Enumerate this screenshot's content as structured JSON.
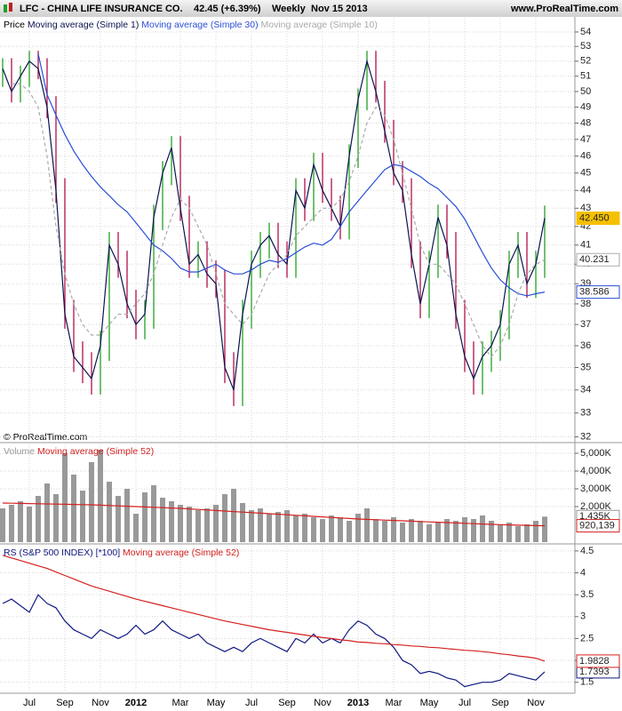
{
  "header": {
    "symbol": "LFC - CHINA LIFE INSURANCE CO.",
    "quote": "42.45 (+6.39%)",
    "period": "Weekly",
    "date": "Nov 15 2013",
    "site": "www.ProRealTime.com"
  },
  "copyright": "© ProRealTime.com",
  "chart_data": [
    {
      "type": "ohlc",
      "log": true,
      "ylim": [
        31.8,
        55
      ],
      "yticks": [
        32,
        33,
        34,
        35,
        36,
        37,
        38,
        39,
        40,
        41,
        42,
        43,
        44,
        45,
        46,
        47,
        48,
        49,
        50,
        51,
        52,
        53,
        54
      ],
      "grid": true,
      "series": [
        {
          "name": "Price",
          "up_color": "#22a022",
          "down_color": "#b0104a",
          "last_label": "42.450",
          "label_bg": "#f5c000",
          "close": [
            51.5,
            50,
            51,
            52,
            51.5,
            49,
            44,
            37.5,
            35.5,
            35,
            34.5,
            36,
            41,
            40,
            38,
            37,
            37.5,
            42.5,
            45,
            46.5,
            43,
            40,
            40.5,
            39.5,
            39,
            35,
            34,
            37.5,
            40,
            41,
            41.5,
            40.5,
            40,
            44,
            43,
            45.5,
            44,
            43,
            42,
            46,
            49.5,
            52,
            50,
            47.5,
            45,
            44,
            40.5,
            38,
            40,
            42.5,
            41,
            37.5,
            35.5,
            34.5,
            35.5,
            36,
            37,
            40,
            41,
            39,
            40,
            42.45
          ],
          "high": [
            52.2,
            52.2,
            51.7,
            52.7,
            52.7,
            52.2,
            49.7,
            44.7,
            38.2,
            36.2,
            35.7,
            36.7,
            41.7,
            41.7,
            40.7,
            38.7,
            38.2,
            43.2,
            45.7,
            47.2,
            47.2,
            43.7,
            41.2,
            41.2,
            40.2,
            39.7,
            35.7,
            38.2,
            40.7,
            41.7,
            42.2,
            42.2,
            41.2,
            44.7,
            44.7,
            46.2,
            46.2,
            44.7,
            43.7,
            46.7,
            50.2,
            52.7,
            52.7,
            50.7,
            48.2,
            45.7,
            44.7,
            41.2,
            40.7,
            43.2,
            43.2,
            41.7,
            38.2,
            36.2,
            36.2,
            36.7,
            37.7,
            40.7,
            41.7,
            41.7,
            40.7,
            43.15
          ],
          "low": [
            50.3,
            49.3,
            49.3,
            50.3,
            50.8,
            48.3,
            43.3,
            36.8,
            34.8,
            34.3,
            33.8,
            33.8,
            35.3,
            39.3,
            37.3,
            36.3,
            36.3,
            36.8,
            41.8,
            44.3,
            42.3,
            39.3,
            39.3,
            38.8,
            38.3,
            34.3,
            33.3,
            33.3,
            36.8,
            39.3,
            40.3,
            39.8,
            39.3,
            39.3,
            42.3,
            42.3,
            43.3,
            42.3,
            41.3,
            41.3,
            45.3,
            48.8,
            49.3,
            46.8,
            44.3,
            43.3,
            39.8,
            37.3,
            37.3,
            39.3,
            40.3,
            36.8,
            34.8,
            33.8,
            33.8,
            34.8,
            35.3,
            36.3,
            39.3,
            38.3,
            38.3,
            39.3
          ]
        },
        {
          "name": "Moving average (Simple 1)",
          "color": "#0a1450"
        },
        {
          "name": "Moving average (Simple 30)",
          "color": "#2a4fd6",
          "last_label": "38.586",
          "values": [
            null,
            null,
            null,
            null,
            52.5,
            49.8,
            48.5,
            47.3,
            46.3,
            45.5,
            44.8,
            44.2,
            43.7,
            43.2,
            42.8,
            42.2,
            41.6,
            41,
            40.7,
            40.3,
            39.8,
            39.6,
            39.6,
            39.8,
            40,
            39.7,
            39.5,
            39.5,
            39.7,
            40,
            40.2,
            40.1,
            40.3,
            40.6,
            40.9,
            41.1,
            41,
            41.3,
            42,
            42.8,
            43.4,
            44,
            44.6,
            45.2,
            45.5,
            45.4,
            45.1,
            44.8,
            44.4,
            44.1,
            43.6,
            43.1,
            42.4,
            41.5,
            40.6,
            39.8,
            39.2,
            38.8,
            38.5,
            38.4,
            38.5,
            38.586
          ]
        },
        {
          "name": "Moving average (Simple 10)",
          "color": "#aaaaaa",
          "dash": true,
          "last_label": "40.231",
          "values": [
            null,
            50.5,
            50.5,
            50,
            49,
            46,
            42,
            39.5,
            38,
            37,
            36.5,
            36.5,
            37,
            37.5,
            37.5,
            38,
            38.5,
            39.5,
            41,
            42.5,
            43.5,
            43,
            42,
            41,
            39.5,
            38,
            37.5,
            37,
            37.5,
            38.5,
            39.5,
            40,
            40.5,
            41.5,
            42,
            42.5,
            43,
            43,
            43.5,
            44.5,
            46,
            48,
            49,
            48.5,
            47,
            45,
            43,
            41,
            40,
            40,
            39.5,
            39,
            38,
            37,
            36,
            35.5,
            36,
            37,
            38.5,
            39.5,
            40,
            40.231
          ]
        }
      ]
    },
    {
      "type": "bar",
      "ylim": [
        0,
        5500000
      ],
      "grid": true,
      "yticks": [
        {
          "value": 2000000,
          "label": "2,000K"
        },
        {
          "value": 3000000,
          "label": "3,000K"
        },
        {
          "value": 4000000,
          "label": "4,000K"
        },
        {
          "value": 5000000,
          "label": "5,000K"
        }
      ],
      "series": [
        {
          "name": "Volume",
          "color": "#999999",
          "last_label": "1,435K",
          "values": [
            1900000,
            2100000,
            2300000,
            2000000,
            2600000,
            3300000,
            2700000,
            5000000,
            3800000,
            2900000,
            4500000,
            5200000,
            3400000,
            2600000,
            3000000,
            1600000,
            2800000,
            3200000,
            2500000,
            2300000,
            2100000,
            2000000,
            1800000,
            1900000,
            2100000,
            2700000,
            3000000,
            2200000,
            1800000,
            1900000,
            1600000,
            1700000,
            1800000,
            1500000,
            1600000,
            1400000,
            1300000,
            1500000,
            1400000,
            1200000,
            1600000,
            1900000,
            1300000,
            1200000,
            1400000,
            1100000,
            1300000,
            1200000,
            1000000,
            1100000,
            1300000,
            1200000,
            1400000,
            1300000,
            1500000,
            1200000,
            1000000,
            1100000,
            900000,
            1000000,
            1200000,
            1435000
          ]
        },
        {
          "name": "Moving average (Simple 52)",
          "color": "#d42020",
          "last_label": "920,139",
          "values": [
            2200000,
            2190000,
            2180000,
            2170000,
            2160000,
            2150000,
            2140000,
            2130000,
            2120000,
            2110000,
            2100000,
            2080000,
            2060000,
            2040000,
            2020000,
            2000000,
            1980000,
            1960000,
            1940000,
            1920000,
            1900000,
            1870000,
            1840000,
            1810000,
            1780000,
            1750000,
            1720000,
            1690000,
            1660000,
            1630000,
            1600000,
            1570000,
            1540000,
            1510000,
            1480000,
            1450000,
            1420000,
            1390000,
            1360000,
            1330000,
            1300000,
            1280000,
            1260000,
            1240000,
            1220000,
            1200000,
            1180000,
            1160000,
            1140000,
            1120000,
            1100000,
            1080000,
            1060000,
            1040000,
            1020000,
            1000000,
            985000,
            970000,
            955000,
            945000,
            930000,
            920139
          ]
        }
      ]
    },
    {
      "type": "line",
      "ylim": [
        1.25,
        4.62
      ],
      "yticks": [
        1.5,
        2,
        2.5,
        3,
        3.5,
        4,
        4.5
      ],
      "grid": true,
      "categories": [
        null,
        null,
        null,
        "Jul",
        null,
        null,
        null,
        "Sep",
        null,
        null,
        null,
        "Nov",
        null,
        null,
        null,
        "2012",
        null,
        null,
        null,
        null,
        "Mar",
        null,
        null,
        null,
        "May",
        null,
        null,
        null,
        "Jul",
        null,
        null,
        null,
        "Sep",
        null,
        null,
        null,
        "Nov",
        null,
        null,
        null,
        "2013",
        null,
        null,
        null,
        "Mar",
        null,
        null,
        null,
        "May",
        null,
        null,
        null,
        "Jul",
        null,
        null,
        null,
        "Sep",
        null,
        null,
        null,
        "Nov",
        null
      ],
      "series": [
        {
          "name": "RS (S&P 500 INDEX) [*100]",
          "color": "#101880",
          "last_label": "1.7393",
          "values": [
            3.3,
            3.4,
            3.25,
            3.1,
            3.5,
            3.3,
            3.2,
            2.9,
            2.7,
            2.6,
            2.5,
            2.7,
            2.6,
            2.5,
            2.6,
            2.8,
            2.6,
            2.7,
            2.9,
            2.7,
            2.6,
            2.5,
            2.6,
            2.4,
            2.3,
            2.2,
            2.3,
            2.2,
            2.4,
            2.5,
            2.4,
            2.3,
            2.2,
            2.5,
            2.4,
            2.6,
            2.4,
            2.5,
            2.4,
            2.7,
            2.9,
            2.8,
            2.6,
            2.5,
            2.3,
            2.0,
            1.9,
            1.7,
            1.75,
            1.7,
            1.6,
            1.55,
            1.4,
            1.45,
            1.5,
            1.5,
            1.55,
            1.7,
            1.65,
            1.6,
            1.55,
            1.7393
          ]
        },
        {
          "name": "Moving average (Simple 52)",
          "color": "#d42020",
          "last_label": "1.9828",
          "values": [
            4.4,
            4.34,
            4.28,
            4.22,
            4.16,
            4.1,
            4.02,
            3.94,
            3.86,
            3.78,
            3.7,
            3.64,
            3.58,
            3.52,
            3.46,
            3.4,
            3.35,
            3.3,
            3.25,
            3.2,
            3.15,
            3.1,
            3.05,
            3.0,
            2.95,
            2.9,
            2.86,
            2.82,
            2.78,
            2.74,
            2.7,
            2.67,
            2.64,
            2.61,
            2.58,
            2.55,
            2.52,
            2.5,
            2.47,
            2.45,
            2.42,
            2.41,
            2.39,
            2.38,
            2.36,
            2.35,
            2.33,
            2.32,
            2.3,
            2.29,
            2.27,
            2.25,
            2.23,
            2.22,
            2.2,
            2.18,
            2.15,
            2.13,
            2.1,
            2.08,
            2.05,
            1.9828
          ]
        }
      ]
    }
  ]
}
